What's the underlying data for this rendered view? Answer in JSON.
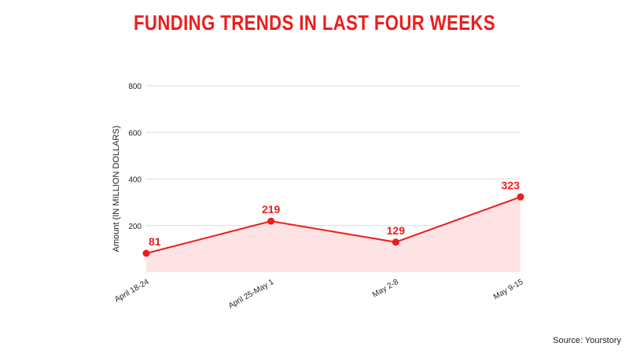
{
  "colors": {
    "accent": "#ee1c1c",
    "area_fill": "#fde3e3",
    "grid": "#dcdcdc",
    "text": "#222222"
  },
  "source": "Source: Yourstory",
  "chart_data": {
    "type": "area",
    "title": "FUNDING TRENDS IN LAST FOUR WEEKS",
    "xlabel": "",
    "ylabel": "Amount (IN MILLION DOLLARS)",
    "categories": [
      "April 18-24",
      "April 25-May 1",
      "May 2-8",
      "May 9-15"
    ],
    "values": [
      81,
      219,
      129,
      323
    ],
    "y_ticks": [
      200,
      400,
      600,
      800
    ],
    "ylim": [
      0,
      800
    ],
    "grid": true,
    "data_labels": true,
    "legend": "none"
  }
}
